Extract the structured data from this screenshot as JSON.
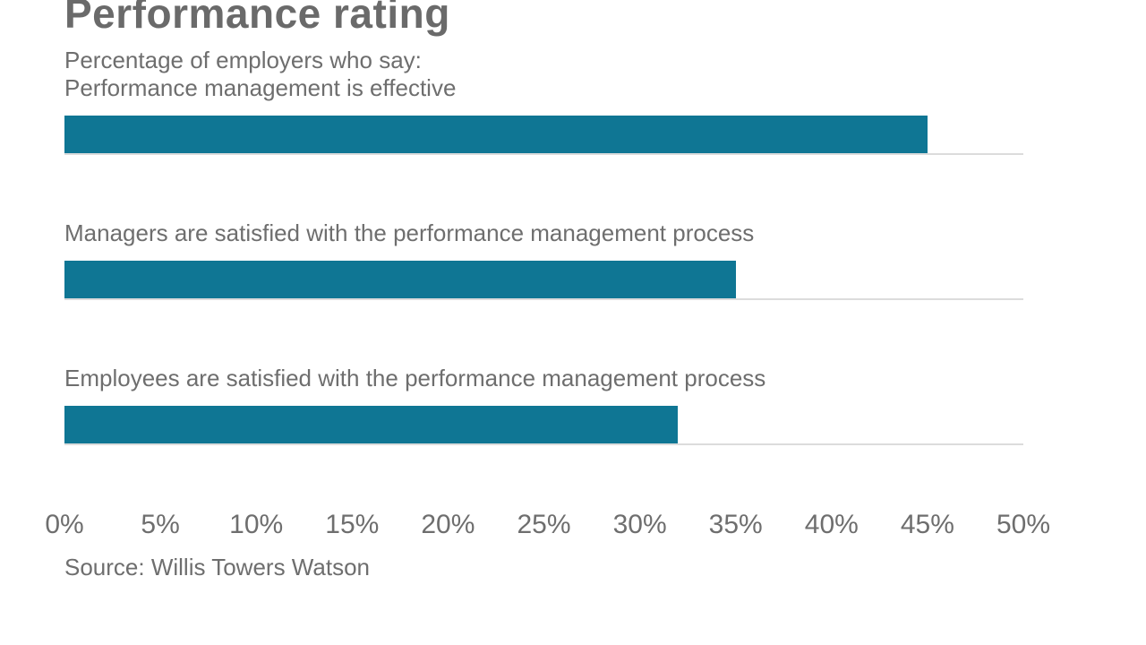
{
  "chart_data": {
    "type": "bar",
    "orientation": "horizontal",
    "title": "Performance rating",
    "subtitle": "Percentage of employers who say:",
    "categories": [
      "Performance management is effective",
      "Managers are satisfied with the performance management process",
      "Employees are satisfied with the performance management process"
    ],
    "values": [
      45,
      35,
      32
    ],
    "unit": "%",
    "xlim": [
      0,
      50
    ],
    "x_tick_step": 5,
    "x_tick_labels": [
      "0%",
      "5%",
      "10%",
      "15%",
      "20%",
      "25%",
      "30%",
      "35%",
      "40%",
      "45%",
      "50%"
    ],
    "grid": "baseline-per-bar",
    "legend": "none",
    "source": "Source: Willis Towers Watson",
    "colors": {
      "bar": "#0f7694",
      "baseline": "#dcdcdc",
      "text": "#6e6e6e"
    }
  }
}
